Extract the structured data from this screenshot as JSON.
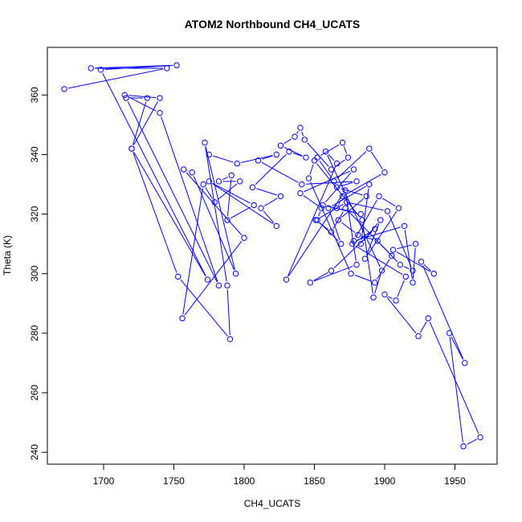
{
  "chart_data": {
    "type": "scatter",
    "title": "ATOM2 Northbound CH4_UCATS",
    "xlabel": "CH4_UCATS",
    "ylabel": "Theta (K)",
    "xlim": [
      1660,
      1980
    ],
    "ylim": [
      236,
      376
    ],
    "xticks": [
      1700,
      1750,
      1800,
      1850,
      1900,
      1950
    ],
    "yticks": [
      240,
      260,
      280,
      300,
      320,
      340,
      360
    ],
    "grid": false,
    "legend": "none",
    "series": [
      {
        "color": "#0000ff",
        "style": "points-connected-by-lines",
        "x": [
          1672,
          1745,
          1691,
          1752,
          1698,
          1774,
          1720,
          1731,
          1716,
          1782,
          1740,
          1715,
          1740,
          1720,
          1753,
          1790,
          1788,
          1772,
          1794,
          1763,
          1757,
          1800,
          1756,
          1771,
          1779,
          1797,
          1782,
          1791,
          1788,
          1807,
          1775,
          1823,
          1812,
          1826,
          1806,
          1832,
          1844,
          1826,
          1836,
          1840,
          1843,
          1862,
          1874,
          1870,
          1852,
          1864,
          1889,
          1900,
          1870,
          1866,
          1883,
          1856,
          1878,
          1840,
          1855,
          1852,
          1869,
          1860,
          1889,
          1883,
          1897,
          1886,
          1910,
          1896,
          1878,
          1914,
          1920,
          1922,
          1906,
          1935,
          1926,
          1957,
          1946,
          1956,
          1968,
          1931,
          1924,
          1900,
          1908,
          1915,
          1877,
          1893,
          1862,
          1847,
          1880,
          1872,
          1830,
          1866,
          1858,
          1898,
          1892,
          1884,
          1850,
          1846,
          1876,
          1893,
          1905,
          1872,
          1862,
          1851,
          1873,
          1902,
          1920,
          1911,
          1895,
          1881,
          1867,
          1887,
          1866,
          1880,
          1841,
          1810,
          1823,
          1795,
          1775
        ],
        "y": [
          362,
          369,
          369,
          370,
          368.5,
          298,
          342,
          359,
          359,
          296,
          354,
          360,
          359,
          342,
          299,
          278,
          296,
          344,
          300,
          334,
          335,
          312,
          285,
          330,
          324,
          331,
          331,
          333,
          318,
          323,
          331,
          316,
          322,
          326,
          329,
          341,
          339,
          343,
          346,
          349,
          345,
          335,
          339,
          344,
          339,
          331,
          342,
          334,
          326,
          322,
          320,
          323,
          335,
          327,
          322,
          318,
          310,
          322,
          330,
          310,
          318,
          305,
          322,
          326,
          311,
          316,
          297,
          310,
          308,
          300,
          304,
          270,
          280,
          242,
          245,
          285,
          279,
          293,
          291,
          299,
          310,
          315,
          301,
          297,
          303,
          328,
          298,
          337,
          341,
          301,
          292,
          318,
          338,
          332,
          300,
          297,
          306,
          322,
          314,
          318,
          324,
          321,
          301,
          303,
          311,
          313,
          318,
          326,
          329,
          331,
          330,
          338,
          340,
          337,
          340
        ]
      }
    ]
  }
}
